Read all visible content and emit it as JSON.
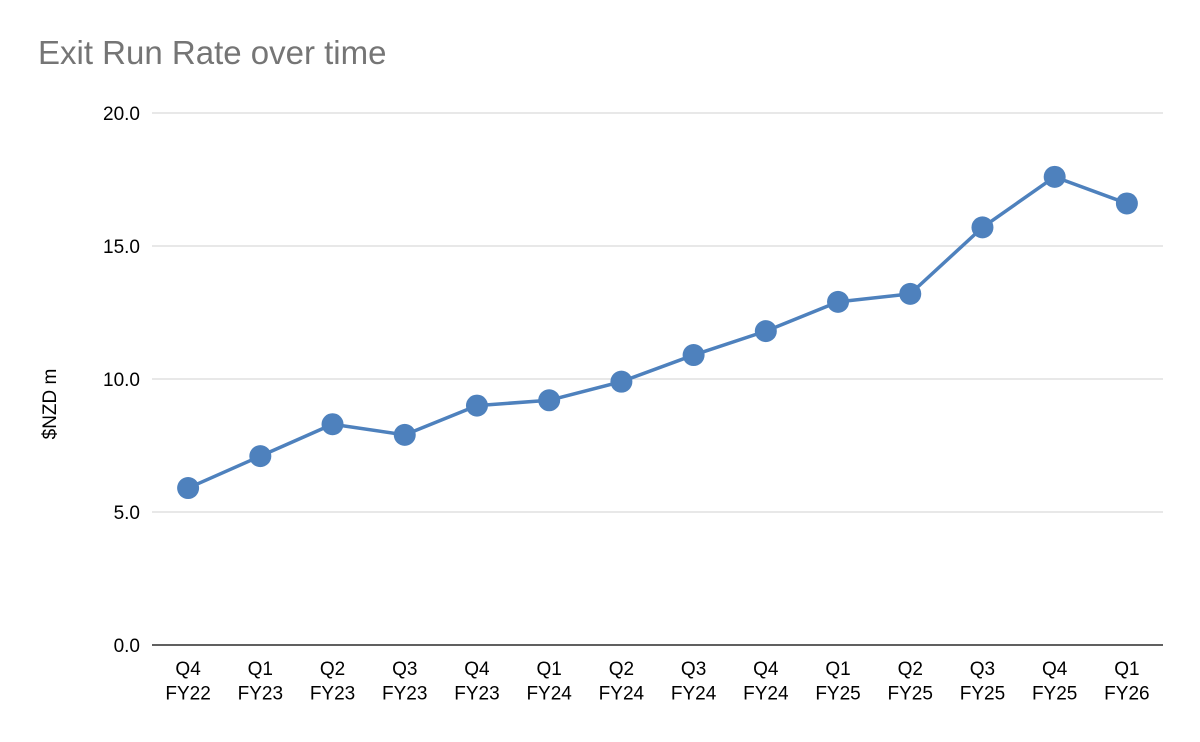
{
  "chart_data": {
    "type": "line",
    "title": "Exit Run Rate over time",
    "xlabel": "",
    "ylabel": "$NZD m",
    "ylim": [
      0,
      20
    ],
    "yticks": [
      "0.0",
      "5.0",
      "10.0",
      "15.0",
      "20.0"
    ],
    "ytick_values": [
      0,
      5,
      10,
      15,
      20
    ],
    "grid": true,
    "legend": "none",
    "categories": [
      [
        "Q4",
        "FY22"
      ],
      [
        "Q1",
        "FY23"
      ],
      [
        "Q2",
        "FY23"
      ],
      [
        "Q3",
        "FY23"
      ],
      [
        "Q4",
        "FY23"
      ],
      [
        "Q1",
        "FY24"
      ],
      [
        "Q2",
        "FY24"
      ],
      [
        "Q3",
        "FY24"
      ],
      [
        "Q4",
        "FY24"
      ],
      [
        "Q1",
        "FY25"
      ],
      [
        "Q2",
        "FY25"
      ],
      [
        "Q3",
        "FY25"
      ],
      [
        "Q4",
        "FY25"
      ],
      [
        "Q1",
        "FY26"
      ]
    ],
    "series": [
      {
        "color": "#4E81BD",
        "values": [
          5.9,
          7.1,
          8.3,
          7.9,
          9.0,
          9.2,
          9.9,
          10.9,
          11.8,
          12.9,
          13.2,
          15.7,
          17.6,
          16.6
        ]
      }
    ]
  }
}
